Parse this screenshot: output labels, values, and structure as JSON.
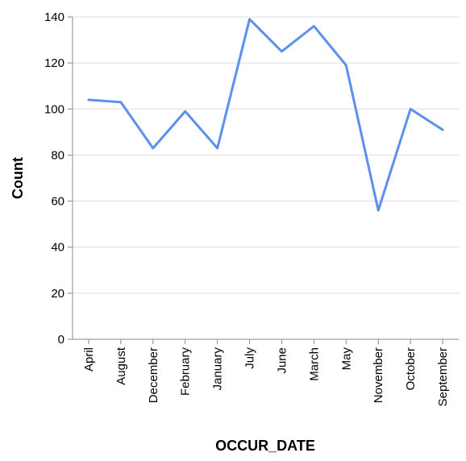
{
  "chart_data": {
    "type": "line",
    "x": [
      "April",
      "August",
      "December",
      "February",
      "January",
      "July",
      "June",
      "March",
      "May",
      "November",
      "October",
      "September"
    ],
    "series": [
      {
        "values": [
          104,
          103,
          83,
          99,
          83,
          139,
          125,
          136,
          119,
          56,
          100,
          91
        ]
      }
    ],
    "xlabel": "OCCUR_DATE",
    "ylabel": "Count",
    "ylim": [
      0,
      140
    ],
    "yticks": [
      0,
      20,
      40,
      60,
      80,
      100,
      120,
      140
    ],
    "grid": true,
    "line_color": "#5b8ff0"
  }
}
